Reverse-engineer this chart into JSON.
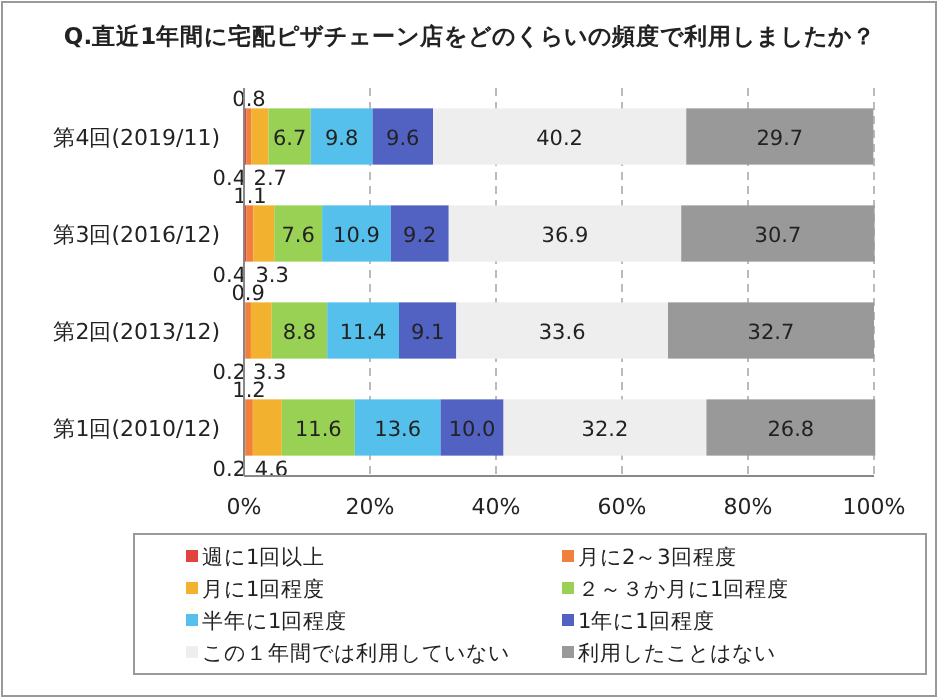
{
  "chart_data": {
    "type": "bar",
    "orientation": "horizontal",
    "stacked": true,
    "title": "Q.直近1年間に宅配ピザチェーン店をどのくらいの頻度で利用しましたか？",
    "categories": [
      "第4回(2019/11)",
      "第3回(2016/12)",
      "第2回(2013/12)",
      "第1回(2010/12)"
    ],
    "series": [
      {
        "name": "週に1回以上",
        "color": "#e0443a",
        "values": [
          0.4,
          0.4,
          0.2,
          0.2
        ]
      },
      {
        "name": "月に2～3回程度",
        "color": "#f0803c",
        "values": [
          0.8,
          1.1,
          0.9,
          1.2
        ]
      },
      {
        "name": "月に1回程度",
        "color": "#f2b230",
        "values": [
          2.7,
          3.3,
          3.3,
          4.6
        ]
      },
      {
        "name": "２～３か月に1回程度",
        "color": "#99d155",
        "values": [
          6.7,
          7.6,
          8.8,
          11.6
        ]
      },
      {
        "name": "半年に1回程度",
        "color": "#55c0ec",
        "values": [
          9.8,
          10.9,
          11.4,
          13.6
        ]
      },
      {
        "name": "1年に1回程度",
        "color": "#5262c2",
        "values": [
          9.6,
          9.2,
          9.1,
          10.0
        ],
        "value_labels": [
          "9.6",
          "9.2",
          "9.1",
          "10.0"
        ]
      },
      {
        "name": "この１年間では利用していない",
        "color": "#eeeeee",
        "values": [
          40.2,
          36.9,
          33.6,
          32.2
        ]
      },
      {
        "name": "利用したことはない",
        "color": "#999999",
        "values": [
          29.7,
          30.7,
          32.7,
          26.8
        ]
      }
    ],
    "xlim": [
      0,
      100
    ],
    "xticks": [
      {
        "value": 0,
        "label": "0%"
      },
      {
        "value": 20,
        "label": "20%"
      },
      {
        "value": 40,
        "label": "40%"
      },
      {
        "value": 60,
        "label": "60%"
      },
      {
        "value": 80,
        "label": "80%"
      },
      {
        "value": 100,
        "label": "100%"
      }
    ],
    "grid": "x",
    "legend": "bottom",
    "data_labels": true
  }
}
